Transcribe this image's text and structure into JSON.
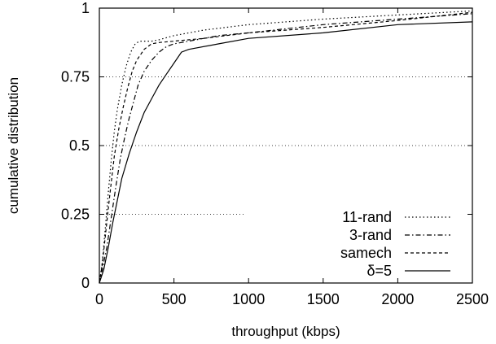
{
  "chart_data": {
    "type": "line",
    "xlabel": "throughput (kbps)",
    "ylabel": "cumulative distribution",
    "xlim": [
      0,
      2500
    ],
    "ylim": [
      0,
      1
    ],
    "x_ticks": [
      0,
      500,
      1000,
      1500,
      2000,
      2500
    ],
    "y_ticks": [
      0,
      0.25,
      0.5,
      0.75,
      1
    ],
    "x_tick_labels": [
      "0",
      "500",
      "1000",
      "1500",
      "2000",
      "2500"
    ],
    "y_tick_labels": [
      "0",
      "0.25",
      "0.5",
      "0.75",
      "1"
    ],
    "grid": "horizontal dotted at y ticks",
    "legend_position": "bottom-right",
    "series": [
      {
        "name": "11-rand",
        "style": "dotted",
        "x": [
          0,
          20,
          40,
          60,
          80,
          100,
          120,
          150,
          180,
          210,
          240,
          270,
          300,
          350,
          400,
          500,
          700,
          1000,
          1500,
          2000,
          2500
        ],
        "y": [
          0,
          0.08,
          0.2,
          0.33,
          0.45,
          0.55,
          0.63,
          0.72,
          0.79,
          0.84,
          0.87,
          0.88,
          0.88,
          0.88,
          0.885,
          0.9,
          0.92,
          0.94,
          0.96,
          0.975,
          0.99
        ]
      },
      {
        "name": "3-rand",
        "style": "dashdot",
        "x": [
          0,
          20,
          50,
          80,
          110,
          140,
          170,
          200,
          230,
          260,
          300,
          350,
          400,
          450,
          500,
          600,
          800,
          1000,
          1500,
          2000,
          2500
        ],
        "y": [
          0,
          0.05,
          0.13,
          0.24,
          0.35,
          0.45,
          0.53,
          0.6,
          0.66,
          0.72,
          0.77,
          0.81,
          0.84,
          0.86,
          0.87,
          0.88,
          0.9,
          0.91,
          0.94,
          0.96,
          0.98
        ]
      },
      {
        "name": "samech",
        "style": "dashed",
        "x": [
          0,
          20,
          40,
          70,
          100,
          130,
          160,
          190,
          220,
          250,
          300,
          350,
          400,
          500,
          700,
          1000,
          1500,
          2000,
          2500
        ],
        "y": [
          0,
          0.07,
          0.17,
          0.32,
          0.46,
          0.56,
          0.64,
          0.71,
          0.77,
          0.81,
          0.85,
          0.87,
          0.875,
          0.88,
          0.89,
          0.91,
          0.93,
          0.955,
          0.985
        ]
      },
      {
        "name": "δ=5",
        "style": "solid",
        "x": [
          0,
          30,
          60,
          90,
          120,
          150,
          200,
          250,
          300,
          350,
          400,
          450,
          500,
          550,
          600,
          800,
          1000,
          1500,
          2000,
          2500
        ],
        "y": [
          0,
          0.05,
          0.13,
          0.22,
          0.3,
          0.38,
          0.47,
          0.55,
          0.62,
          0.67,
          0.72,
          0.76,
          0.8,
          0.84,
          0.85,
          0.87,
          0.89,
          0.91,
          0.94,
          0.95
        ]
      }
    ]
  }
}
